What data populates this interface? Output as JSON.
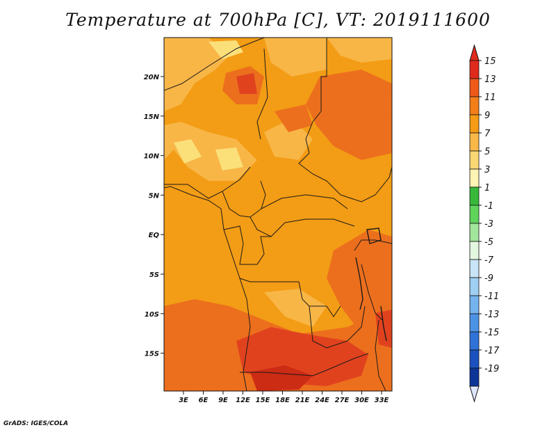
{
  "title": "Temperature at 700hPa [C], VT: 2019111600",
  "footer": "GrADS: IGES/COLA",
  "map": {
    "lat_labels": [
      "20N",
      "15N",
      "10N",
      "5N",
      "EQ",
      "5S",
      "10S",
      "15S"
    ],
    "lon_labels": [
      "3E",
      "6E",
      "9E",
      "12E",
      "15E",
      "18E",
      "21E",
      "24E",
      "27E",
      "30E",
      "33E"
    ],
    "field_colors": {
      "t5_7": "#fbe07a",
      "t7_9": "#f8b647",
      "t9_11": "#f39c15",
      "t11_13": "#ec6f1d",
      "t13_15": "#e0421e"
    }
  },
  "colorbar": {
    "labels": [
      "15",
      "13",
      "11",
      "9",
      "7",
      "5",
      "3",
      "1",
      "-1",
      "-3",
      "-5",
      "-7",
      "-9",
      "-11",
      "-13",
      "-15",
      "-17",
      "-19"
    ],
    "colors": [
      "#e02a1c",
      "#ef5a19",
      "#f37e1a",
      "#f59b15",
      "#f8b747",
      "#fbd774",
      "#fdf3b2",
      "#38b83b",
      "#5fd45b",
      "#a2e69b",
      "#e3f6e0",
      "#c9e5f7",
      "#9fcff3",
      "#74b3ee",
      "#4c93e6",
      "#2f72d8",
      "#1c52bf",
      "#0d3598",
      "#06145a"
    ],
    "top_arrow_color": "#e02a1c",
    "bottom_arrow_color": "#dde6fb"
  }
}
